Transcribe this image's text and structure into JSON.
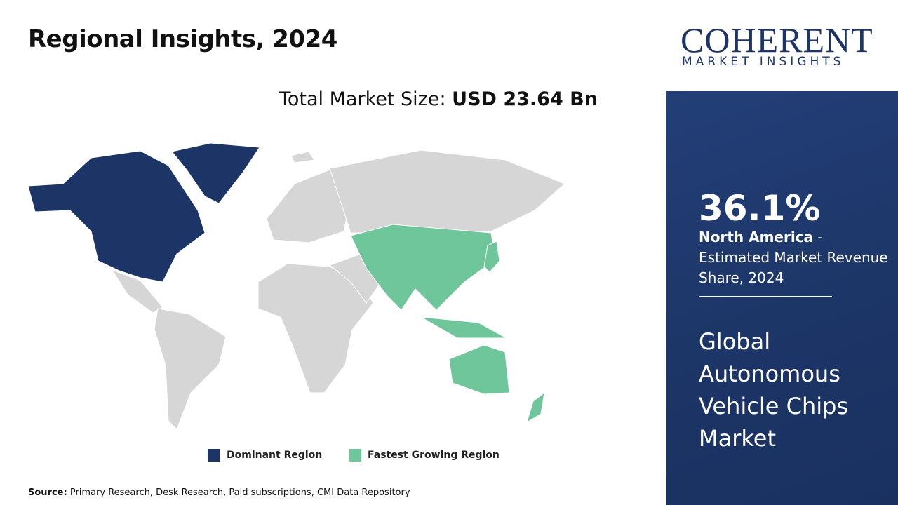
{
  "header": {
    "title": "Regional Insights, 2024"
  },
  "market_size": {
    "label": "Total Market Size:",
    "value": "USD 23.64 Bn"
  },
  "legend": {
    "dominant": "Dominant Region",
    "fastest": "Fastest Growing Region"
  },
  "source": {
    "label": "Source:",
    "text": "Primary Research, Desk Research, Paid subscriptions, CMI Data Repository"
  },
  "logo": {
    "name": "COHERENT",
    "tagline": "MARKET INSIGHTS"
  },
  "side_panel": {
    "share": "36.1%",
    "region": "North America",
    "description": "- Estimated Market Revenue Share, 2024",
    "market": "Global Autonomous Vehicle Chips Market"
  }
}
